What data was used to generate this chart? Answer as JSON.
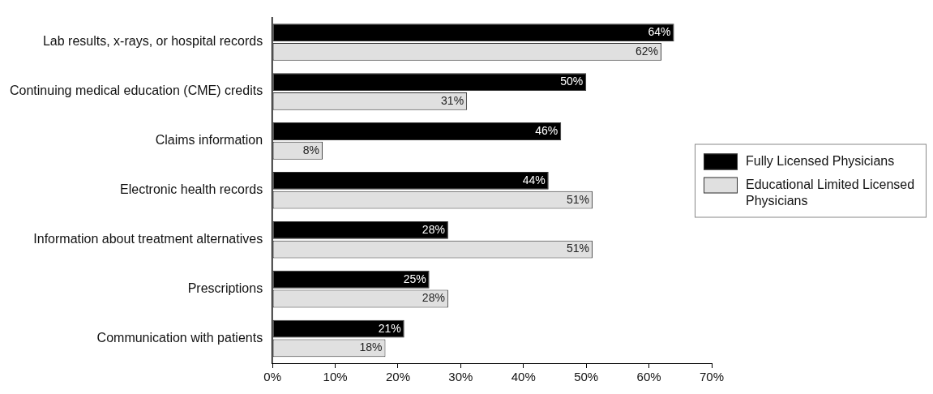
{
  "chart_data": {
    "type": "bar",
    "orientation": "horizontal",
    "categories": [
      "Lab results, x-rays, or hospital records",
      "Continuing medical education (CME) credits",
      "Claims information",
      "Electronic health records",
      "Information about treatment alternatives",
      "Prescriptions",
      "Communication with patients"
    ],
    "series": [
      {
        "name": "Fully Licensed Physicians",
        "color": "#000000",
        "values": [
          64,
          50,
          46,
          44,
          28,
          25,
          21
        ],
        "value_labels": [
          "64%",
          "50%",
          "46%",
          "44%",
          "28%",
          "25%",
          "21%"
        ]
      },
      {
        "name": "Educational Limited Licensed Physicians",
        "color": "#e0e0e0",
        "values": [
          62,
          31,
          8,
          51,
          51,
          28,
          18
        ],
        "value_labels": [
          "62%",
          "31%",
          "8%",
          "51%",
          "51%",
          "28%",
          "18%"
        ]
      }
    ],
    "xlim": [
      0,
      70
    ],
    "xticks": [
      {
        "value": 0,
        "label": "0%"
      },
      {
        "value": 10,
        "label": "10%"
      },
      {
        "value": 20,
        "label": "20%"
      },
      {
        "value": 30,
        "label": "30%"
      },
      {
        "value": 40,
        "label": "40%"
      },
      {
        "value": 50,
        "label": "50%"
      },
      {
        "value": 60,
        "label": "60%"
      },
      {
        "value": 70,
        "label": "70%"
      }
    ],
    "grid": false,
    "legend": "right"
  }
}
